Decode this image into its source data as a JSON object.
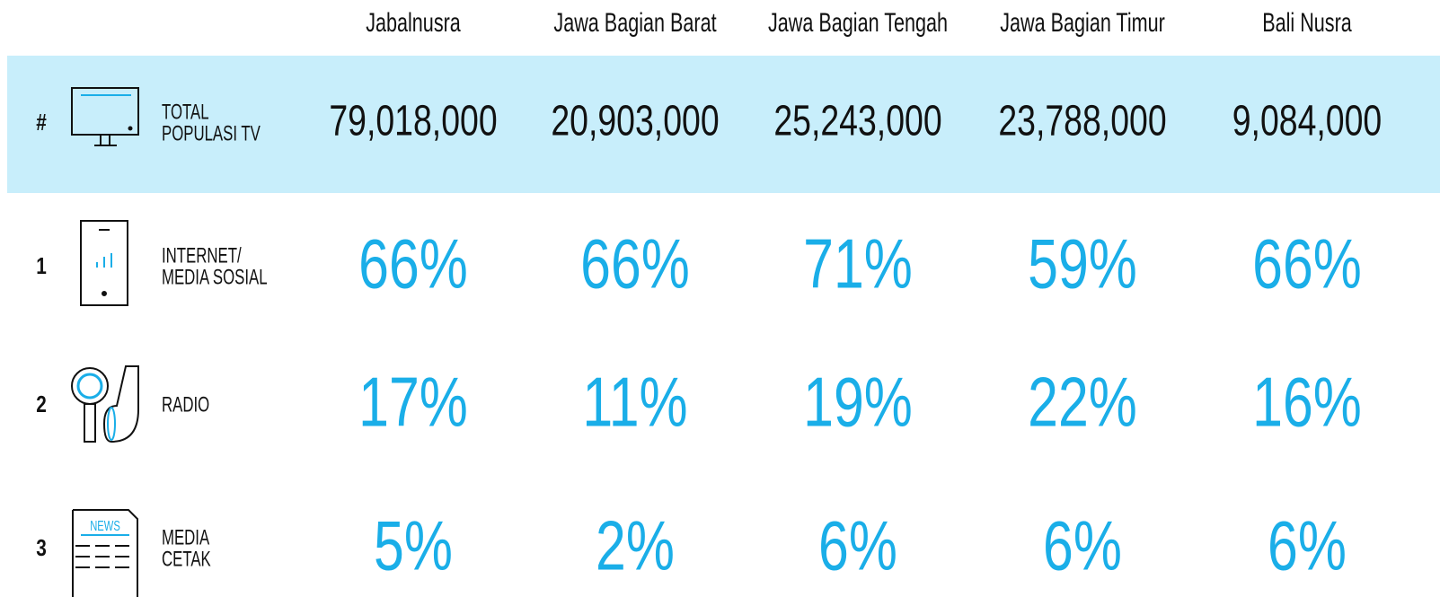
{
  "table": {
    "columns": [
      "Jabalnusra",
      "Jawa Bagian Barat",
      "Jawa Bagian Tengah",
      "Jawa Bagian Timur",
      "Bali Nusra"
    ],
    "rows": [
      {
        "rank": "#",
        "label": [
          "TOTAL",
          "POPULASI TV"
        ],
        "values": [
          "79,018,000",
          "20,903,000",
          "25,243,000",
          "23,788,000",
          "9,084,000"
        ]
      },
      {
        "rank": "1",
        "label": [
          "INTERNET/",
          "MEDIA SOSIAL"
        ],
        "values": [
          "66%",
          "66%",
          "71%",
          "59%",
          "66%"
        ]
      },
      {
        "rank": "2",
        "label": [
          "RADIO"
        ],
        "values": [
          "17%",
          "11%",
          "19%",
          "22%",
          "16%"
        ]
      },
      {
        "rank": "3",
        "label": [
          "MEDIA",
          "CETAK"
        ],
        "values": [
          "5%",
          "2%",
          "6%",
          "6%",
          "6%"
        ],
        "icon_text": "NEWS"
      }
    ]
  }
}
